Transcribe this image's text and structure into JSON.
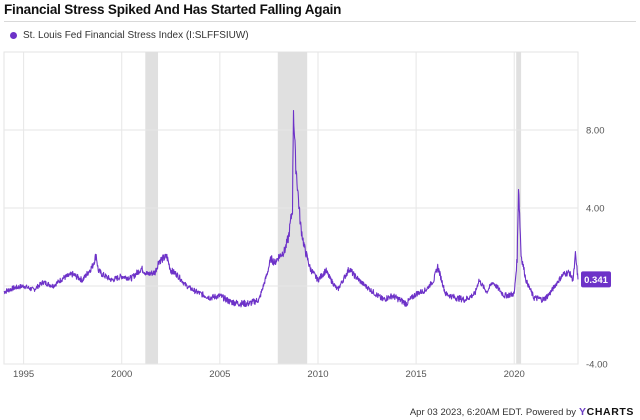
{
  "header": {
    "title": "Financial Stress Spiked And Has Started Falling Again"
  },
  "footer": {
    "timestamp": "Apr 03 2023, 6:20AM EDT.",
    "powered_by": "Powered by",
    "brand_y": "Y",
    "brand_rest": "CHARTS"
  },
  "colors": {
    "series": "#6d32c8",
    "recession": "#e0e0e0",
    "grid": "#e6e6e6"
  },
  "chart_data": {
    "type": "line",
    "title": "Financial Stress Spiked And Has Started Falling Again",
    "xlabel": "",
    "ylabel": "",
    "xlim": [
      1994.0,
      2023.25
    ],
    "ylim": [
      -4.0,
      12.0
    ],
    "x_ticks": [
      1995,
      2000,
      2005,
      2010,
      2015,
      2020
    ],
    "y_ticks": [
      8.0,
      4.0,
      0.0,
      -4.0
    ],
    "y_tick_labels": [
      "8.00",
      "4.00",
      "",
      "-4.00"
    ],
    "grid": true,
    "legend_position": "top-left",
    "recessions": [
      [
        2001.2,
        2001.85
      ],
      [
        2007.95,
        2009.45
      ],
      [
        2020.1,
        2020.35
      ]
    ],
    "last_value_label": "0.341",
    "series": [
      {
        "name": "St. Louis Fed Financial Stress Index (I:SLFFSIUW)",
        "x": [
          1994.0,
          1994.5,
          1995.0,
          1995.5,
          1996.0,
          1996.5,
          1997.0,
          1997.5,
          1998.0,
          1998.5,
          1998.7,
          1998.8,
          1999.0,
          1999.5,
          2000.0,
          2000.5,
          2001.0,
          2001.3,
          2001.7,
          2001.9,
          2002.3,
          2002.5,
          2002.8,
          2003.3,
          2003.8,
          2004.5,
          2005.0,
          2005.5,
          2006.0,
          2006.5,
          2007.0,
          2007.4,
          2007.6,
          2007.8,
          2008.0,
          2008.3,
          2008.5,
          2008.7,
          2008.75,
          2008.85,
          2008.95,
          2009.1,
          2009.3,
          2009.6,
          2010.0,
          2010.4,
          2010.6,
          2011.0,
          2011.6,
          2011.8,
          2012.3,
          2012.8,
          2013.3,
          2013.8,
          2014.5,
          2015.0,
          2015.5,
          2015.9,
          2016.1,
          2016.5,
          2017.0,
          2017.5,
          2018.0,
          2018.2,
          2018.6,
          2018.9,
          2019.5,
          2020.0,
          2020.15,
          2020.22,
          2020.35,
          2020.6,
          2021.0,
          2021.5,
          2021.8,
          2022.2,
          2022.5,
          2022.8,
          2023.0,
          2023.12,
          2023.25
        ],
        "values": [
          -0.3,
          -0.1,
          0.0,
          -0.2,
          0.2,
          0.0,
          0.4,
          0.6,
          0.3,
          1.0,
          1.6,
          0.8,
          0.6,
          0.3,
          0.5,
          0.4,
          0.9,
          0.6,
          0.7,
          1.3,
          1.5,
          0.8,
          0.6,
          0.0,
          -0.3,
          -0.6,
          -0.5,
          -0.8,
          -0.9,
          -0.9,
          -0.7,
          0.6,
          1.4,
          1.2,
          1.5,
          1.8,
          2.5,
          4.0,
          9.2,
          6.5,
          5.2,
          3.2,
          2.0,
          0.9,
          0.3,
          0.8,
          0.4,
          -0.2,
          0.9,
          0.6,
          0.1,
          -0.3,
          -0.7,
          -0.5,
          -0.9,
          -0.4,
          -0.2,
          0.3,
          1.0,
          -0.4,
          -0.6,
          -0.7,
          -0.4,
          0.3,
          -0.3,
          0.2,
          -0.5,
          -0.4,
          1.4,
          5.2,
          1.6,
          0.3,
          -0.6,
          -0.7,
          -0.4,
          0.2,
          0.6,
          0.7,
          0.3,
          1.6,
          0.341
        ]
      }
    ]
  }
}
